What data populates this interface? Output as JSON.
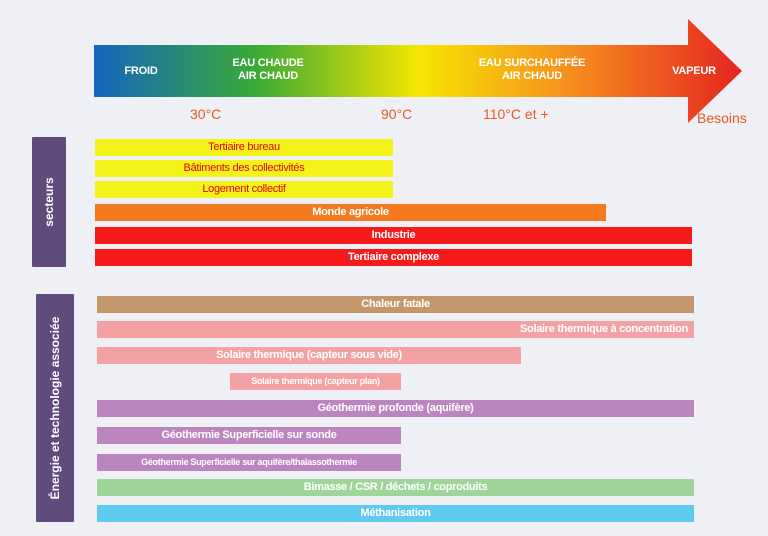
{
  "header": {
    "arrow_labels": [
      {
        "id": "froid",
        "text": "FROID"
      },
      {
        "id": "eau-chaude",
        "text": "EAU CHAUDE\nAIR CHAUD"
      },
      {
        "id": "eau-surchauffee",
        "text": "EAU SURCHAUFFÉE\nAIR CHAUD"
      },
      {
        "id": "vapeur",
        "text": "VAPEUR"
      }
    ],
    "temps": [
      "30°C",
      "90°C",
      "110°C et +"
    ],
    "axis_label": "Besoins",
    "gradient_colors": [
      "#1565c0",
      "#3aaa35",
      "#f5e600",
      "#f7941d",
      "#e52421"
    ]
  },
  "secteurs": {
    "title": "secteurs",
    "bars": [
      {
        "label": "Tertiaire bureau",
        "color": "#f3f31a",
        "text_color": "#e30613"
      },
      {
        "label": "Bâtiments des collectivités",
        "color": "#f3f31a",
        "text_color": "#e30613"
      },
      {
        "label": "Logement collectif",
        "color": "#f3f31a",
        "text_color": "#e30613"
      },
      {
        "label": "Monde agricole",
        "color": "#f47a1f",
        "text_color": "#ffffff"
      },
      {
        "label": "Industrie",
        "color": "#f51b1b",
        "text_color": "#ffffff"
      },
      {
        "label": "Tertiaire complexe",
        "color": "#f51b1b",
        "text_color": "#ffffff"
      }
    ]
  },
  "energie": {
    "title": "Énergie et technologie associée",
    "bars": [
      {
        "label": "Chaleur fatale",
        "color": "#c3976b"
      },
      {
        "label": "Solaire thermique à concentration",
        "color": "#f4a1a3"
      },
      {
        "label": "Solaire thermique (capteur sous vide)",
        "color": "#f4a1a3"
      },
      {
        "label": "Solaire thermique (capteur plan)",
        "color": "#f4a1a3"
      },
      {
        "label": "Géothermie profonde (aquifère)",
        "color": "#bb86bf"
      },
      {
        "label": "Géothermie Superficielle sur sonde",
        "color": "#bb86bf"
      },
      {
        "label": "Géothermie Superficielle sur aquifère/thalassothermie",
        "color": "#bb86bf"
      },
      {
        "label": "Bimasse / CSR / déchets / coproduits",
        "color": "#9fd59b"
      },
      {
        "label": "Méthanisation",
        "color": "#5fcaf0"
      }
    ]
  }
}
